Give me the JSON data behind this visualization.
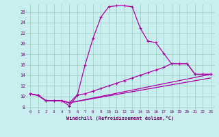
{
  "xlabel": "Windchill (Refroidissement éolien,°C)",
  "bg_color": "#c8eef0",
  "line_color": "#aa00aa",
  "xlim_min": -0.5,
  "xlim_max": 23.5,
  "ylim_min": 7.5,
  "ylim_max": 27.5,
  "xticks": [
    0,
    1,
    2,
    3,
    4,
    5,
    6,
    7,
    8,
    9,
    10,
    11,
    12,
    13,
    14,
    15,
    16,
    17,
    18,
    19,
    20,
    21,
    22,
    23
  ],
  "yticks": [
    8,
    10,
    12,
    14,
    16,
    18,
    20,
    22,
    24,
    26
  ],
  "line1_x": [
    0,
    1,
    2,
    3,
    4,
    5,
    6,
    7,
    8,
    9,
    10,
    11,
    12,
    13,
    14,
    15,
    16,
    17,
    18,
    19,
    20,
    21,
    22,
    23
  ],
  "line1_y": [
    10.5,
    10.2,
    9.2,
    9.2,
    9.2,
    8.2,
    10.2,
    16.0,
    21.0,
    25.0,
    27.0,
    27.2,
    27.2,
    27.0,
    23.0,
    20.5,
    20.2,
    18.2,
    16.2,
    16.2,
    16.2,
    14.2,
    14.2,
    14.2
  ],
  "line2_x": [
    0,
    1,
    2,
    3,
    4,
    5,
    6,
    7,
    8,
    9,
    10,
    11,
    12,
    13,
    14,
    15,
    16,
    17,
    18,
    19,
    20,
    21,
    22,
    23
  ],
  "line2_y": [
    10.5,
    10.2,
    9.2,
    9.2,
    9.2,
    8.8,
    10.3,
    10.5,
    11.0,
    11.5,
    12.0,
    12.5,
    13.0,
    13.5,
    14.0,
    14.5,
    15.0,
    15.5,
    16.2,
    16.2,
    16.2,
    14.2,
    14.2,
    14.2
  ],
  "line3_x": [
    0,
    1,
    2,
    3,
    4,
    5,
    23
  ],
  "line3_y": [
    10.5,
    10.2,
    9.2,
    9.2,
    9.2,
    8.8,
    14.2
  ],
  "line4_x": [
    0,
    1,
    2,
    3,
    4,
    5,
    23
  ],
  "line4_y": [
    10.5,
    10.2,
    9.2,
    9.2,
    9.2,
    8.8,
    13.5
  ]
}
